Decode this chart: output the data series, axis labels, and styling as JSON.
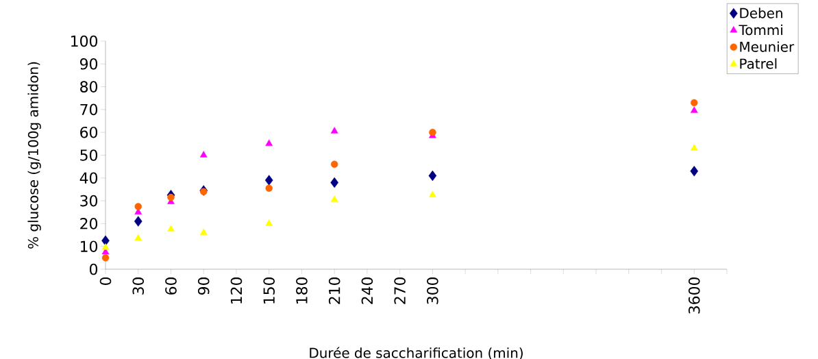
{
  "chart_data": {
    "type": "scatter",
    "xlabel": "Durée de saccharification (min)",
    "ylabel": "% glucose (g/100g amidon)",
    "categories": [
      "0",
      "30",
      "60",
      "90",
      "120",
      "150",
      "180",
      "210",
      "240",
      "270",
      "300",
      null,
      null,
      null,
      null,
      null,
      null,
      null,
      "3600"
    ],
    "ylim": [
      0,
      100
    ],
    "yticks": [
      0,
      10,
      20,
      30,
      40,
      50,
      60,
      70,
      80,
      90,
      100
    ],
    "legend": "top right",
    "series": [
      {
        "name": "Deben",
        "color": "#000080",
        "marker": "diamond",
        "values": [
          12.5,
          21,
          32.5,
          34.5,
          null,
          39,
          null,
          38,
          null,
          null,
          41,
          null,
          null,
          null,
          null,
          null,
          null,
          null,
          43
        ]
      },
      {
        "name": "Tommi",
        "color": "#ff00ff",
        "marker": "triangle",
        "values": [
          7.5,
          25,
          29.5,
          50,
          null,
          55,
          null,
          60.5,
          null,
          null,
          58.5,
          null,
          null,
          null,
          null,
          null,
          null,
          null,
          69.5
        ]
      },
      {
        "name": "Meunier",
        "color": "#ff6600",
        "marker": "circle",
        "values": [
          5,
          27.5,
          31.5,
          34,
          null,
          35.5,
          null,
          46,
          null,
          null,
          60,
          null,
          null,
          null,
          null,
          null,
          null,
          null,
          73
        ]
      },
      {
        "name": "Patrel",
        "color": "#ffff00",
        "marker": "triangle",
        "values": [
          9.5,
          13.5,
          17.5,
          16,
          null,
          20,
          null,
          30.5,
          null,
          null,
          32.5,
          null,
          null,
          null,
          null,
          null,
          null,
          null,
          53
        ]
      }
    ]
  }
}
